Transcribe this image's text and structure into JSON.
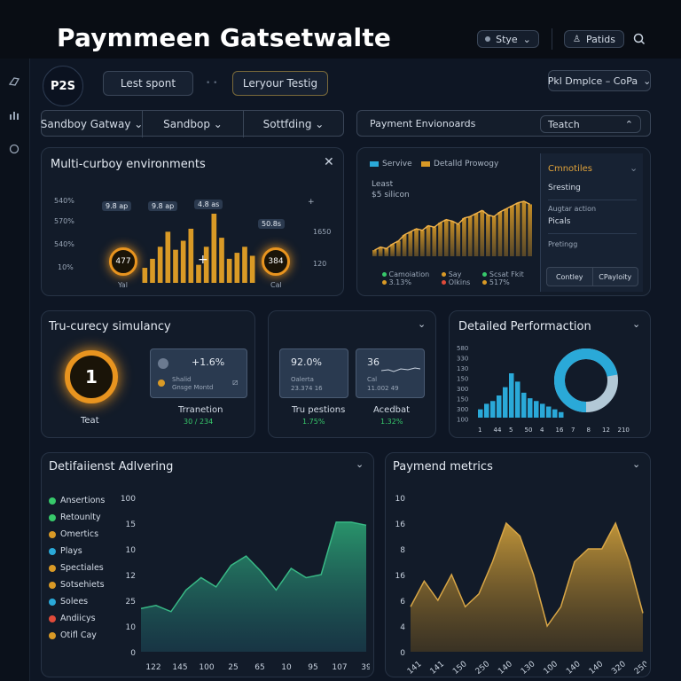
{
  "app": {
    "title": "Paymmeen Gatsetwalte",
    "style_btn": "Stye",
    "patids_btn": "Patids"
  },
  "toolbar": {
    "logo": "P2S",
    "lest_spont": "Lest spont",
    "layout_btn": "Leryour Testig",
    "dropdown": "Pkl Dmplce – CoPa"
  },
  "tabs": [
    {
      "label": "Sandboy Gatway"
    },
    {
      "label": "Sandbop"
    },
    {
      "label": "Sottfding"
    }
  ],
  "env_bar": {
    "label": "Payment Envionoards",
    "select": "Teatch"
  },
  "multi_env": {
    "title": "Multi-curboy environments",
    "y_labels": [
      "540%",
      "570%",
      "540%",
      "10%"
    ],
    "badges": [
      "9.8 ap",
      "9.8 ap",
      "4.8 as",
      "50.8s"
    ],
    "left_ring_val": "477",
    "left_ring_label": "Yal",
    "right_ring_val": "384",
    "right_ring_label": "Cal",
    "right_ticks": [
      "1650",
      "120"
    ],
    "bar_values": [
      5,
      8,
      12,
      17,
      11,
      14,
      18,
      6,
      12,
      23,
      15,
      8,
      10,
      12,
      9
    ],
    "accent": "#d99a26"
  },
  "area_panel": {
    "legend1": "Servive",
    "legend2": "Detalld Prowogy",
    "leg_color1": "#2aa9d8",
    "leg_color2": "#d99a26",
    "least": "Least",
    "amount": "$5 silicon",
    "values": [
      4,
      6,
      5,
      8,
      10,
      14,
      16,
      18,
      17,
      20,
      19,
      22,
      24,
      23,
      21,
      25,
      26,
      28,
      30,
      27,
      26,
      29,
      31,
      33,
      35,
      36,
      34
    ],
    "stats": [
      {
        "label": "Camoiation",
        "value": "3.13%",
        "color": "#37c96b"
      },
      {
        "label": "Say",
        "value": "Olkins",
        "color": "#d99a26"
      },
      {
        "label": "Scsat Fkit",
        "value": "517%",
        "color": "#37c96b"
      }
    ]
  },
  "side_menu": {
    "title": "Cmnotiles",
    "items": [
      "Sresting",
      "Augtar action",
      "Picals",
      "Pretingg"
    ],
    "btn1": "Contley",
    "btn2": "CPayloity"
  },
  "tru_currency": {
    "title": "Tru-curecy simulancy",
    "ring_value": "1",
    "ring_label": "Teat",
    "card_pct": "+1.6%",
    "card_sub1": "Shalid",
    "card_sub2": "Gnsge Montd",
    "caption": "Trranetion",
    "caption_val": "30 / 234"
  },
  "tru_pestions": {
    "card1_big": "92.0%",
    "card1_sub1": "Oalerta",
    "card1_sub2": "23.374 16",
    "card2_big": "36",
    "card2_sub1": "Cal",
    "card2_sub2": "11.002 49",
    "caption1": "Tru pestions",
    "caption1_val": "1.75%",
    "caption2": "Acedbat",
    "caption2_val": "1.32%"
  },
  "detailed_perf": {
    "title": "Detailed Performaction",
    "y_labels": [
      "580",
      "330",
      "130",
      "150",
      "300",
      "150",
      "300",
      "100"
    ],
    "x_labels": [
      "1",
      "44",
      "5",
      "50",
      "4",
      "16",
      "7",
      "8",
      "12",
      "210"
    ],
    "bar_values": [
      3,
      5,
      6,
      8,
      11,
      16,
      13,
      9,
      7,
      6,
      5,
      4,
      3,
      2
    ],
    "donut_fraction": 0.72,
    "color": "#2aa9d8"
  },
  "advering": {
    "title": "Detifaiienst Adlvering",
    "legend": [
      {
        "label": "Ansertions",
        "color": "#37c96b"
      },
      {
        "label": "Retounlty",
        "color": "#37c96b"
      },
      {
        "label": "Omertics",
        "color": "#d99a26"
      },
      {
        "label": "Plays",
        "color": "#2aa9d8"
      },
      {
        "label": "Spectiales",
        "color": "#d99a26"
      },
      {
        "label": "Sotsehiets",
        "color": "#d99a26"
      },
      {
        "label": "Solees",
        "color": "#2aa9d8"
      },
      {
        "label": "Andiicys",
        "color": "#e04b3a"
      },
      {
        "label": "Otifl Cay",
        "color": "#d99a26"
      }
    ],
    "y_labels": [
      "100",
      "15",
      "10",
      "12",
      "25",
      "10",
      "0"
    ],
    "x_labels": [
      "122",
      "145",
      "100",
      "25",
      "65",
      "10",
      "95",
      "107",
      "39"
    ],
    "values": [
      14,
      15,
      13,
      20,
      24,
      21,
      28,
      31,
      26,
      20,
      27,
      24,
      25,
      42,
      42,
      41
    ],
    "ymax": 50,
    "color": "#1f9a73"
  },
  "payment_metrics": {
    "title": "Paymend metrics",
    "y_labels": [
      "10",
      "16",
      "8",
      "16",
      "6",
      "4",
      "0"
    ],
    "x_labels": [
      "141",
      "141",
      "150",
      "250",
      "140",
      "130",
      "100",
      "140",
      "140",
      "320",
      "250"
    ],
    "values": [
      7,
      11,
      8,
      12,
      7,
      9,
      14,
      20,
      18,
      12,
      4,
      7,
      14,
      16,
      16,
      20,
      14,
      6
    ],
    "ymax": 24,
    "color": "#c89a3a"
  }
}
